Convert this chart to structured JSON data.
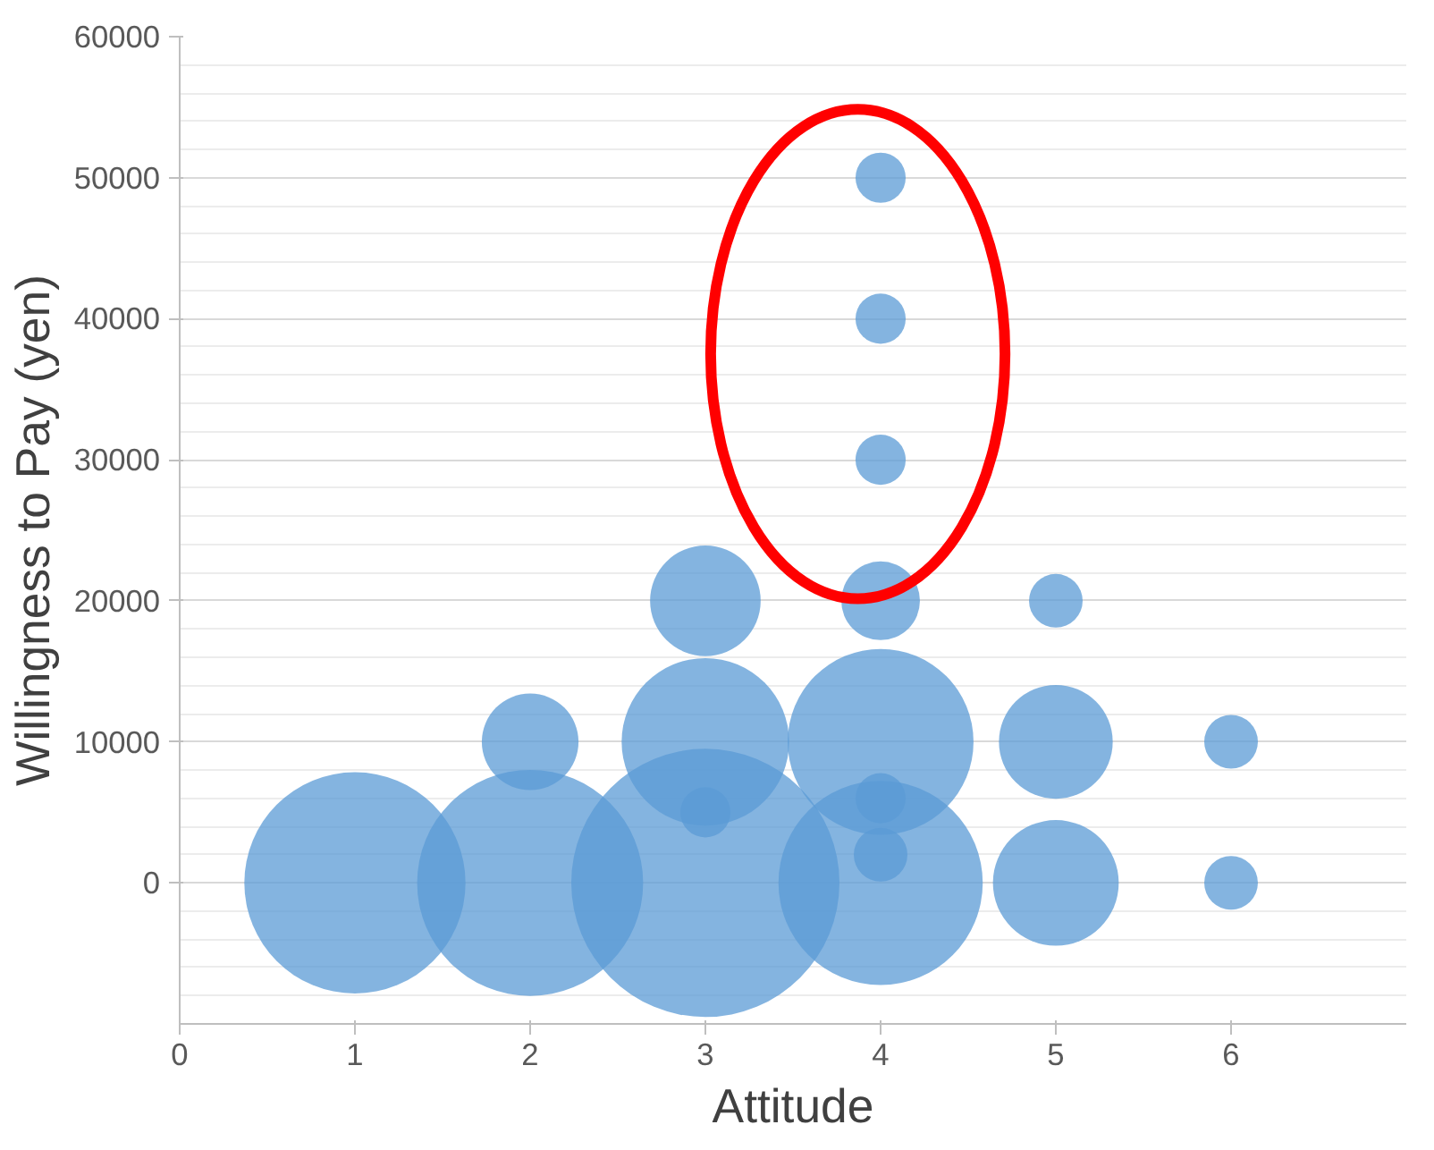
{
  "chart_data": {
    "type": "bubble",
    "xlabel": "Attitude",
    "ylabel": "Willingness to Pay (yen)",
    "xlim": [
      0,
      7
    ],
    "xticks": [
      0,
      1,
      2,
      3,
      4,
      5,
      6
    ],
    "ylim": [
      -10000,
      60000
    ],
    "yticks": [
      0,
      10000,
      20000,
      30000,
      40000,
      50000,
      60000
    ],
    "grid": "y",
    "series": [
      {
        "color": "#5b9bd5",
        "x": [
          1,
          2,
          3,
          4,
          5,
          6,
          3,
          4,
          4,
          2,
          3,
          4,
          5,
          6,
          3,
          4,
          5,
          4,
          4,
          4
        ],
        "values": [
          0,
          0,
          0,
          0,
          0,
          0,
          5000,
          2000,
          6000,
          10000,
          10000,
          10000,
          10000,
          10000,
          20000,
          20000,
          20000,
          30000,
          40000,
          50000
        ],
        "sizes": [
          0.68,
          0.71,
          1,
          0.58,
          0.22,
          0.04,
          0.035,
          0.04,
          0.035,
          0.13,
          0.39,
          0.48,
          0.18,
          0.04,
          0.17,
          0.086,
          0.04,
          0.035,
          0.035,
          0.035
        ]
      }
    ]
  }
}
